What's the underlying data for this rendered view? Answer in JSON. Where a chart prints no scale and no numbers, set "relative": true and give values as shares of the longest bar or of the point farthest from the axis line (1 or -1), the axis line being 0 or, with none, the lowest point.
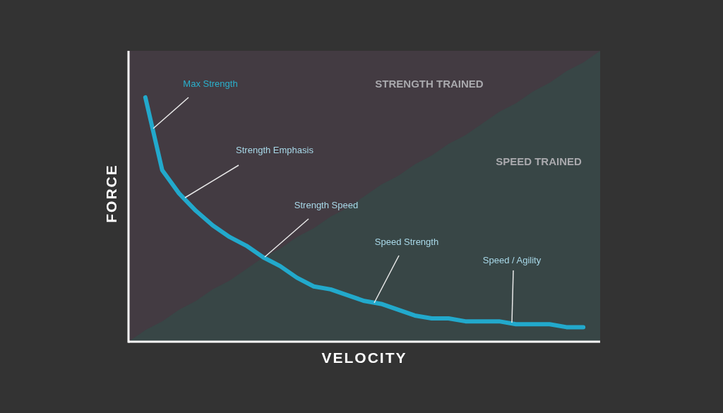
{
  "chart_data": {
    "type": "line",
    "relative": true,
    "xlabel": "VELOCITY",
    "ylabel": "FORCE",
    "categories": [
      null,
      null,
      null,
      null,
      null,
      null,
      null,
      null,
      null,
      null,
      null,
      null,
      null,
      null,
      null,
      null,
      null,
      null,
      null,
      null,
      null,
      null,
      null,
      null,
      null,
      null,
      null,
      null,
      null
    ],
    "series": [
      {
        "type": "area",
        "color": "#384646",
        "values": [
          0,
          0.04,
          0.07,
          0.11,
          0.14,
          0.18,
          0.21,
          0.25,
          0.29,
          0.32,
          0.36,
          0.39,
          0.43,
          0.46,
          0.5,
          0.54,
          0.57,
          0.61,
          0.64,
          0.68,
          0.71,
          0.75,
          0.79,
          0.82,
          0.86,
          0.89,
          0.93,
          0.96,
          1
        ]
      },
      {
        "color": "#22a9cc",
        "values": [
          null,
          0.84,
          0.59,
          0.51,
          0.45,
          0.4,
          0.36,
          0.33,
          0.29,
          0.26,
          0.22,
          0.19,
          0.18,
          0.16,
          0.14,
          0.13,
          0.11,
          0.09,
          0.08,
          0.08,
          0.07,
          0.07,
          0.07,
          0.06,
          0.06,
          0.06,
          0.05,
          0.05,
          null
        ]
      }
    ],
    "line_style": "solid",
    "marker": "none",
    "annotations": [
      "STRENGTH TRAINED",
      "SPEED TRAINED",
      "Max Strength",
      "Strength Emphasis",
      "Strength Speed",
      "Speed Strength",
      "Speed / Agility"
    ]
  }
}
